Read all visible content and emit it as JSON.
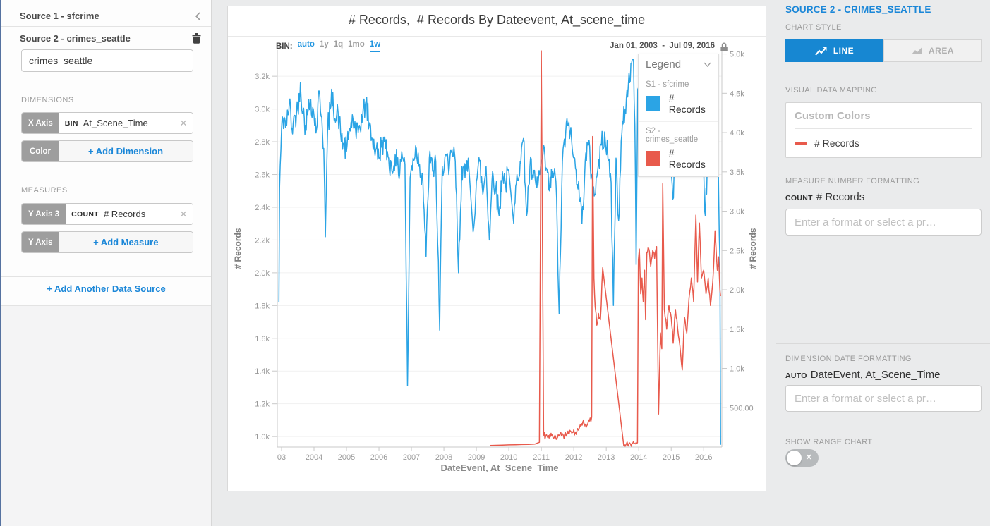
{
  "colors": {
    "accent_blue": "#1b87d8",
    "button_blue": "#1787d2",
    "bin_blue": "#2196e0",
    "series_blue": "#2ba4e5",
    "series_red": "#e85a4c"
  },
  "icons": {
    "collapse_chevron": "‹",
    "legend_chevron": "∨",
    "close": "×",
    "toggle_off": "✕"
  },
  "sidebar": {
    "source1_header": "Source 1 - sfcrime",
    "source2_header": "Source 2 - crimes_seattle",
    "table_input": "crimes_seattle",
    "dimensions_label": "DIMENSIONS",
    "x_axis_chip": "X Axis",
    "bin_prefix": "BIN",
    "x_dimension": "At_Scene_Time",
    "color_chip": "Color",
    "add_dimension": "+ Add Dimension",
    "measures_label": "MEASURES",
    "y_axis3_chip": "Y Axis 3",
    "count_prefix": "COUNT",
    "y_measure": "# Records",
    "y_axis_chip": "Y Axis",
    "add_measure": "+ Add Measure",
    "add_source": "+ Add Another Data Source"
  },
  "panel": {
    "title": "SOURCE 2 - CRIMES_SEATTLE",
    "chart_style_label": "CHART STYLE",
    "line_button": "LINE",
    "area_button": "AREA",
    "vdm_label": "VISUAL DATA MAPPING",
    "custom_colors_title": "Custom Colors",
    "custom_colors_measure": "# Records",
    "mnf_label": "MEASURE NUMBER FORMATTING",
    "count_prefix": "COUNT",
    "mnf_measure": "# Records",
    "format_placeholder": "Enter a format or select a pr…",
    "ddf_label": "DIMENSION DATE FORMATTING",
    "auto_prefix": "AUTO",
    "ddf_field": "DateEvent, At_Scene_Time",
    "range_chart_label": "SHOW RANGE CHART",
    "range_chart_state": "off"
  },
  "chart": {
    "title": "# Records,  # Records By Dateevent, At_scene_time",
    "date_range": "Jan 01, 2003  -  Jul 09, 2016",
    "legend": {
      "title": "Legend",
      "items": [
        {
          "source": "S1 - sfcrime",
          "label": "# Records",
          "color": "#2ba4e5"
        },
        {
          "source": "S2 - crimes_seattle",
          "label": "# Records",
          "color": "#e85a4c"
        }
      ]
    }
  },
  "chart_data": {
    "type": "line",
    "title": "# Records,  # Records By Dateevent, At_scene_time",
    "bin": {
      "label": "BIN:",
      "options": [
        "auto",
        "1y",
        "1q",
        "1mo",
        "1w"
      ],
      "blue": [
        "auto",
        "1w"
      ],
      "selected": "1w"
    },
    "date_range": "Jan 01, 2003  -  Jul 09, 2016",
    "x_axis": {
      "label": "DateEvent, At_Scene_Time",
      "range": [
        2002.87,
        2016.56
      ],
      "ticks": [
        [
          2003,
          "03"
        ],
        [
          2004,
          "2004"
        ],
        [
          2005,
          "2005"
        ],
        [
          2006,
          "2006"
        ],
        [
          2007,
          "2007"
        ],
        [
          2008,
          "2008"
        ],
        [
          2009,
          "2009"
        ],
        [
          2010,
          "2010"
        ],
        [
          2011,
          "2011"
        ],
        [
          2012,
          "2012"
        ],
        [
          2013,
          "2013"
        ],
        [
          2014,
          "2014"
        ],
        [
          2015,
          "2015"
        ],
        [
          2016,
          "2016"
        ]
      ]
    },
    "y_left": {
      "label": "# Records",
      "range": [
        936,
        3360
      ],
      "ticks": [
        [
          1000,
          "1.0k"
        ],
        [
          1200,
          "1.2k"
        ],
        [
          1400,
          "1.4k"
        ],
        [
          1600,
          "1.6k"
        ],
        [
          1800,
          "1.8k"
        ],
        [
          2000,
          "2.0k"
        ],
        [
          2200,
          "2.2k"
        ],
        [
          2400,
          "2.4k"
        ],
        [
          2600,
          "2.6k"
        ],
        [
          2800,
          "2.8k"
        ],
        [
          3000,
          "3.0k"
        ],
        [
          3200,
          "3.2k"
        ]
      ]
    },
    "y_right": {
      "label": "# Records",
      "range": [
        0,
        5050
      ],
      "ticks": [
        [
          500,
          "500.00"
        ],
        [
          1000,
          "1.0k"
        ],
        [
          1500,
          "1.5k"
        ],
        [
          2000,
          "2.0k"
        ],
        [
          2500,
          "2.5k"
        ],
        [
          3000,
          "3.0k"
        ],
        [
          3500,
          "3.5k"
        ],
        [
          4000,
          "4.0k"
        ],
        [
          4500,
          "4.5k"
        ],
        [
          5000,
          "5.0k"
        ]
      ]
    },
    "grid": "horizontal",
    "legend_position": "top-right",
    "render": {
      "seed": 42,
      "step": 0.019,
      "max_gap": 0.135
    },
    "series": [
      {
        "name": "S1 - sfcrime",
        "measure": "# Records",
        "axis": "left",
        "color": "#2ba4e5",
        "jitter": 80,
        "clamp": [
          950,
          3340
        ],
        "points": [
          [
            2002.92,
            1820
          ],
          [
            2002.94,
            2520
          ],
          [
            2003.0,
            2880
          ],
          [
            2003.08,
            2950
          ],
          [
            2003.16,
            2900
          ],
          [
            2003.24,
            3040
          ],
          [
            2003.32,
            2880
          ],
          [
            2003.42,
            2960
          ],
          [
            2003.5,
            3000
          ],
          [
            2003.58,
            3160
          ],
          [
            2003.66,
            2980
          ],
          [
            2003.74,
            2900
          ],
          [
            2003.82,
            2990
          ],
          [
            2003.9,
            3060
          ],
          [
            2004.0,
            2960
          ],
          [
            2004.08,
            2880
          ],
          [
            2004.16,
            3110
          ],
          [
            2004.24,
            2950
          ],
          [
            2004.3,
            2760
          ],
          [
            2004.35,
            2220
          ],
          [
            2004.42,
            2880
          ],
          [
            2004.5,
            3000
          ],
          [
            2004.58,
            3100
          ],
          [
            2004.66,
            2920
          ],
          [
            2004.74,
            2980
          ],
          [
            2004.82,
            2850
          ],
          [
            2004.9,
            2790
          ],
          [
            2005.0,
            2740
          ],
          [
            2005.1,
            2880
          ],
          [
            2005.2,
            2940
          ],
          [
            2005.3,
            2820
          ],
          [
            2005.4,
            2900
          ],
          [
            2005.5,
            2960
          ],
          [
            2005.6,
            3050
          ],
          [
            2005.7,
            2900
          ],
          [
            2005.8,
            2820
          ],
          [
            2005.9,
            2750
          ],
          [
            2006.0,
            2700
          ],
          [
            2006.1,
            2810
          ],
          [
            2006.2,
            2760
          ],
          [
            2006.3,
            2700
          ],
          [
            2006.4,
            2620
          ],
          [
            2006.5,
            2720
          ],
          [
            2006.6,
            2600
          ],
          [
            2006.7,
            2740
          ],
          [
            2006.8,
            2660
          ],
          [
            2006.88,
            1310
          ],
          [
            2006.96,
            2580
          ],
          [
            2007.05,
            2700
          ],
          [
            2007.15,
            2760
          ],
          [
            2007.25,
            2660
          ],
          [
            2007.35,
            2580
          ],
          [
            2007.45,
            2100
          ],
          [
            2007.55,
            2700
          ],
          [
            2007.65,
            2620
          ],
          [
            2007.75,
            2680
          ],
          [
            2007.87,
            1650
          ],
          [
            2007.95,
            2650
          ],
          [
            2008.05,
            2720
          ],
          [
            2008.15,
            2600
          ],
          [
            2008.25,
            2750
          ],
          [
            2008.35,
            2680
          ],
          [
            2008.45,
            2000
          ],
          [
            2008.55,
            2650
          ],
          [
            2008.65,
            2580
          ],
          [
            2008.75,
            2700
          ],
          [
            2008.9,
            2250
          ],
          [
            2009.0,
            2560
          ],
          [
            2009.1,
            2680
          ],
          [
            2009.2,
            2480
          ],
          [
            2009.3,
            2650
          ],
          [
            2009.4,
            2200
          ],
          [
            2009.5,
            2620
          ],
          [
            2009.6,
            2520
          ],
          [
            2009.7,
            2350
          ],
          [
            2009.8,
            2620
          ],
          [
            2009.9,
            2540
          ],
          [
            2010.0,
            2620
          ],
          [
            2010.15,
            2300
          ],
          [
            2010.25,
            2600
          ],
          [
            2010.35,
            2680
          ],
          [
            2010.45,
            2820
          ],
          [
            2010.55,
            2350
          ],
          [
            2010.65,
            2650
          ],
          [
            2010.75,
            2580
          ],
          [
            2010.85,
            2520
          ],
          [
            2010.95,
            2600
          ],
          [
            2011.05,
            2720
          ],
          [
            2011.15,
            2640
          ],
          [
            2011.25,
            2500
          ],
          [
            2011.35,
            2620
          ],
          [
            2011.45,
            2560
          ],
          [
            2011.55,
            1750
          ],
          [
            2011.65,
            2680
          ],
          [
            2011.75,
            2850
          ],
          [
            2011.85,
            2920
          ],
          [
            2011.95,
            2760
          ],
          [
            2012.05,
            2640
          ],
          [
            2012.15,
            2560
          ],
          [
            2012.25,
            2300
          ],
          [
            2012.35,
            2680
          ],
          [
            2012.45,
            2780
          ],
          [
            2012.55,
            2600
          ],
          [
            2012.65,
            2480
          ],
          [
            2012.75,
            2650
          ],
          [
            2012.85,
            2780
          ],
          [
            2012.95,
            2860
          ],
          [
            2013.05,
            2700
          ],
          [
            2013.15,
            2550
          ],
          [
            2013.22,
            1800
          ],
          [
            2013.3,
            2700
          ],
          [
            2013.38,
            2320
          ],
          [
            2013.48,
            2850
          ],
          [
            2013.58,
            3000
          ],
          [
            2013.68,
            3150
          ],
          [
            2013.78,
            3280
          ],
          [
            2013.84,
            3300
          ],
          [
            2013.88,
            2900
          ],
          [
            2013.92,
            2050
          ],
          [
            2013.97,
            3120
          ],
          [
            2014.05,
            3000
          ],
          [
            2014.15,
            2880
          ],
          [
            2014.25,
            2980
          ],
          [
            2014.35,
            3050
          ],
          [
            2014.45,
            2880
          ],
          [
            2014.55,
            2760
          ],
          [
            2014.65,
            2850
          ],
          [
            2014.75,
            2950
          ],
          [
            2014.85,
            3060
          ],
          [
            2014.95,
            2900
          ],
          [
            2015.05,
            2450
          ],
          [
            2015.15,
            2850
          ],
          [
            2015.25,
            2780
          ],
          [
            2015.35,
            2900
          ],
          [
            2015.45,
            2980
          ],
          [
            2015.55,
            3150
          ],
          [
            2015.65,
            2880
          ],
          [
            2015.75,
            2800
          ],
          [
            2015.85,
            2950
          ],
          [
            2015.95,
            2880
          ],
          [
            2016.05,
            2350
          ],
          [
            2016.15,
            2850
          ],
          [
            2016.25,
            2700
          ],
          [
            2016.35,
            2950
          ],
          [
            2016.42,
            3060
          ],
          [
            2016.46,
            2500
          ],
          [
            2016.5,
            2080
          ],
          [
            2016.52,
            950
          ]
        ]
      },
      {
        "name": "S2 - crimes_seattle",
        "measure": "# Records",
        "axis": "right",
        "color": "#e85a4c",
        "jitter": 40,
        "clamp": [
          10,
          5040
        ],
        "points": [
          [
            2009.42,
            20
          ],
          [
            2009.6,
            22
          ],
          [
            2009.8,
            25
          ],
          [
            2010.0,
            28
          ],
          [
            2010.2,
            30
          ],
          [
            2010.4,
            32
          ],
          [
            2010.6,
            34
          ],
          [
            2010.8,
            38
          ],
          [
            2010.94,
            60
          ],
          [
            2010.97,
            2600
          ],
          [
            2011.0,
            5040
          ],
          [
            2011.04,
            2300
          ],
          [
            2011.07,
            150
          ],
          [
            2011.2,
            120
          ],
          [
            2011.32,
            145
          ],
          [
            2011.44,
            130
          ],
          [
            2011.56,
            155
          ],
          [
            2011.68,
            145
          ],
          [
            2011.8,
            165
          ],
          [
            2011.92,
            195
          ],
          [
            2012.04,
            175
          ],
          [
            2012.16,
            230
          ],
          [
            2012.28,
            320
          ],
          [
            2012.38,
            250
          ],
          [
            2012.48,
            330
          ],
          [
            2012.55,
            380
          ],
          [
            2012.58,
            3950
          ],
          [
            2012.62,
            2150
          ],
          [
            2012.66,
            1780
          ],
          [
            2012.71,
            1550
          ],
          [
            2012.76,
            1700
          ],
          [
            2012.82,
            1620
          ],
          [
            2012.89,
            2280
          ],
          [
            2013.54,
            15
          ],
          [
            2013.62,
            40
          ],
          [
            2013.75,
            35
          ],
          [
            2013.88,
            45
          ],
          [
            2013.96,
            55
          ],
          [
            2013.99,
            2380
          ],
          [
            2014.02,
            2520
          ],
          [
            2014.06,
            1950
          ],
          [
            2014.1,
            2150
          ],
          [
            2014.14,
            1850
          ],
          [
            2014.18,
            2250
          ],
          [
            2014.21,
            1620
          ],
          [
            2014.25,
            2480
          ],
          [
            2014.31,
            2520
          ],
          [
            2014.37,
            2300
          ],
          [
            2014.43,
            2500
          ],
          [
            2014.49,
            2400
          ],
          [
            2014.55,
            2550
          ],
          [
            2014.61,
            420
          ],
          [
            2014.67,
            1450
          ],
          [
            2014.71,
            1250
          ],
          [
            2014.74,
            3350
          ],
          [
            2014.79,
            1750
          ],
          [
            2014.86,
            1500
          ],
          [
            2014.93,
            1800
          ],
          [
            2015.0,
            1650
          ],
          [
            2015.06,
            1320
          ],
          [
            2015.13,
            1750
          ],
          [
            2015.2,
            1500
          ],
          [
            2015.27,
            1280
          ],
          [
            2015.34,
            980
          ],
          [
            2015.41,
            1650
          ],
          [
            2015.48,
            1450
          ],
          [
            2015.55,
            1900
          ],
          [
            2015.62,
            2150
          ],
          [
            2015.69,
            1850
          ],
          [
            2015.76,
            2950
          ],
          [
            2015.81,
            2100
          ],
          [
            2015.87,
            2850
          ],
          [
            2015.93,
            2150
          ],
          [
            2016.0,
            2250
          ],
          [
            2016.07,
            1950
          ],
          [
            2016.14,
            2150
          ],
          [
            2016.21,
            1800
          ],
          [
            2016.28,
            2100
          ],
          [
            2016.35,
            2750
          ],
          [
            2016.42,
            2250
          ],
          [
            2016.46,
            2420
          ],
          [
            2016.5,
            2000
          ],
          [
            2016.52,
            1920
          ]
        ]
      }
    ]
  }
}
